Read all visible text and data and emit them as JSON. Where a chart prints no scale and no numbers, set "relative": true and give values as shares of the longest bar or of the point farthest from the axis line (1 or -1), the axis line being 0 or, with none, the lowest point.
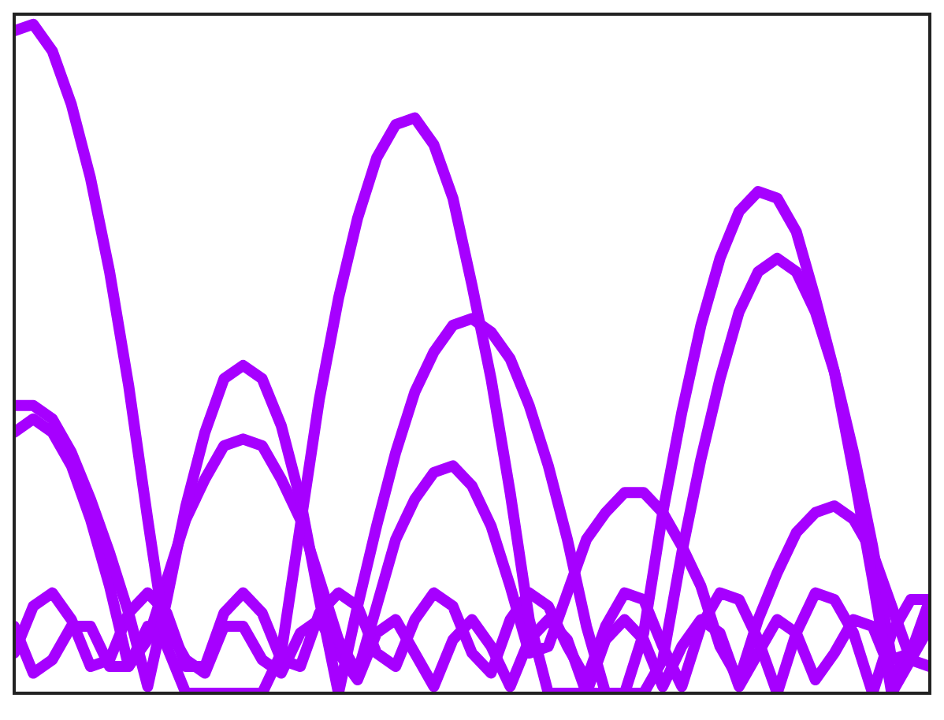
{
  "chart_data": {
    "type": "line",
    "relative": true,
    "grid": false,
    "legend": false,
    "marker": "none",
    "categories": [
      null,
      null,
      null,
      null,
      null,
      null,
      null,
      null,
      null,
      null,
      null,
      null,
      null,
      null,
      null,
      null,
      null,
      null,
      null,
      null,
      null,
      null,
      null,
      null,
      null,
      null,
      null,
      null,
      null,
      null,
      null,
      null,
      null,
      null,
      null,
      null,
      null,
      null,
      null,
      null,
      null,
      null,
      null,
      null,
      null,
      null,
      null,
      null,
      null
    ],
    "series": [
      {
        "color": "#a600ff",
        "values": [
          0.99,
          1.0,
          0.96,
          0.88,
          0.77,
          0.63,
          0.46,
          0.26,
          0.07,
          0,
          0,
          0,
          0,
          0,
          0.06,
          0.25,
          0.44,
          0.59,
          0.71,
          0.8,
          0.85,
          0.86,
          0.82,
          0.74,
          0.61,
          0.47,
          0.3,
          0.11,
          0,
          0,
          0,
          0,
          0,
          0.09,
          0.27,
          0.42,
          0.55,
          0.65,
          0.72,
          0.75,
          0.74,
          0.69,
          0.59,
          0.48,
          0.33,
          0.17,
          0,
          0.05,
          0.12
        ]
      },
      {
        "color": "#a600ff",
        "values": [
          0.43,
          0.43,
          0.41,
          0.36,
          0.29,
          0.21,
          0.12,
          0.01,
          0.14,
          0.28,
          0.39,
          0.47,
          0.49,
          0.47,
          0.4,
          0.29,
          0.14,
          0,
          0.13,
          0.25,
          0.36,
          0.45,
          0.51,
          0.55,
          0.56,
          0.54,
          0.5,
          0.43,
          0.34,
          0.23,
          0.1,
          0,
          0,
          0,
          0.05,
          0.21,
          0.35,
          0.47,
          0.57,
          0.63,
          0.65,
          0.63,
          0.57,
          0.48,
          0.36,
          0.22,
          0.05,
          0.06,
          0.14
        ]
      },
      {
        "color": "#a600ff",
        "values": [
          0.39,
          0.41,
          0.39,
          0.34,
          0.26,
          0.16,
          0.04,
          0.08,
          0.17,
          0.26,
          0.32,
          0.37,
          0.38,
          0.37,
          0.32,
          0.26,
          0.17,
          0.08,
          0.03,
          0.13,
          0.23,
          0.29,
          0.33,
          0.34,
          0.31,
          0.25,
          0.16,
          0.06,
          0.07,
          0.15,
          0.23,
          0.27,
          0.3,
          0.3,
          0.27,
          0.22,
          0.16,
          0.07,
          0.02,
          0.11,
          0.18,
          0.24,
          0.27,
          0.28,
          0.26,
          0.21,
          0.13,
          0.05,
          0.04
        ]
      },
      {
        "color": "#a600ff",
        "values": [
          0.06,
          0.13,
          0.15,
          0.11,
          0.04,
          0.05,
          0.12,
          0.15,
          0.12,
          0.04,
          0.04,
          0.12,
          0.15,
          0.12,
          0.05,
          0.04,
          0.12,
          0.15,
          0.13,
          0.06,
          0.04,
          0.11,
          0.15,
          0.13,
          0.06,
          0.03,
          0.11,
          0.15,
          0.13,
          0.07,
          0.02,
          0.1,
          0.15,
          0.14,
          0.07,
          0.01,
          0.1,
          0.15,
          0.14,
          0.08,
          0,
          0.09,
          0.15,
          0.14,
          0.09,
          0,
          0.09,
          0.14,
          0.14
        ]
      },
      {
        "color": "#a600ff",
        "values": [
          0.1,
          0.03,
          0.05,
          0.1,
          0.1,
          0.04,
          0.04,
          0.1,
          0.1,
          0.05,
          0.03,
          0.1,
          0.1,
          0.05,
          0.03,
          0.09,
          0.11,
          0.06,
          0.02,
          0.09,
          0.11,
          0.06,
          0.01,
          0.08,
          0.11,
          0.07,
          0.01,
          0.08,
          0.11,
          0.08,
          0,
          0.08,
          0.11,
          0.08,
          0.01,
          0.07,
          0.11,
          0.09,
          0.01,
          0.06,
          0.11,
          0.09,
          0.02,
          0.06,
          0.11,
          0.1,
          0.03,
          0.05,
          0.1
        ]
      }
    ]
  }
}
